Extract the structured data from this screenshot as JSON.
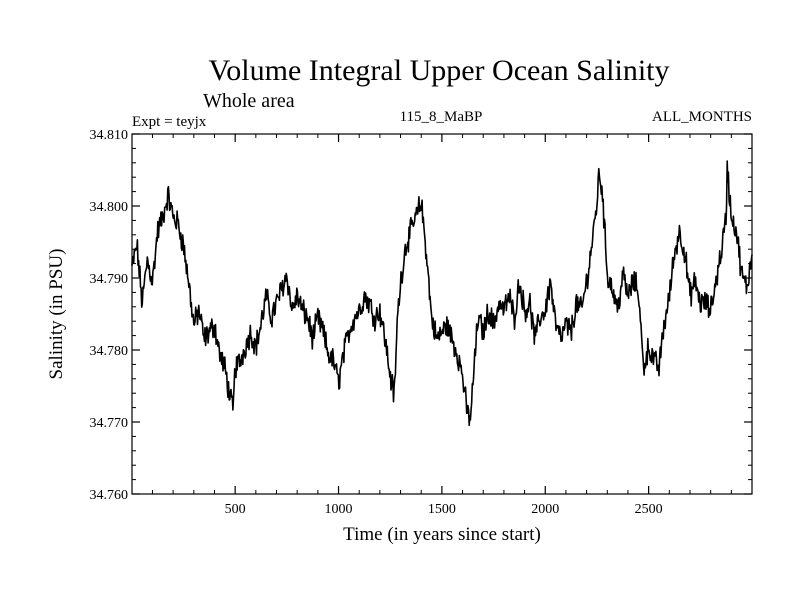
{
  "chart_data": {
    "type": "line",
    "title": "Volume Integral Upper Ocean Salinity",
    "subtitle": "Whole area",
    "expt_label": "Expt = teyjx",
    "experiment_name": "115_8_MaBP",
    "months_label": "ALL_MONTHS",
    "xlabel": "Time (in years since start)",
    "ylabel": "Salinity (in PSU)",
    "xlim": [
      1,
      3000
    ],
    "ylim": [
      34.76,
      34.81
    ],
    "xticks": [
      500,
      1000,
      1500,
      2000,
      2500
    ],
    "xtick_labels": [
      "500",
      "1000",
      "1500",
      "2000",
      "2500"
    ],
    "yticks": [
      34.76,
      34.77,
      34.78,
      34.79,
      34.8,
      34.81
    ],
    "ytick_labels": [
      "34.760",
      "34.770",
      "34.780",
      "34.790",
      "34.800",
      "34.810"
    ],
    "grid": false,
    "series": [
      {
        "name": "Salinity",
        "color": "#000000",
        "x": [
          0,
          25,
          50,
          75,
          100,
          125,
          150,
          175,
          200,
          225,
          250,
          275,
          300,
          325,
          350,
          375,
          400,
          425,
          450,
          475,
          490,
          500,
          525,
          550,
          575,
          600,
          625,
          650,
          675,
          700,
          725,
          750,
          775,
          800,
          825,
          850,
          875,
          900,
          925,
          950,
          975,
          1000,
          1025,
          1050,
          1075,
          1100,
          1125,
          1150,
          1175,
          1200,
          1225,
          1250,
          1270,
          1285,
          1300,
          1325,
          1350,
          1375,
          1400,
          1425,
          1450,
          1475,
          1500,
          1525,
          1550,
          1575,
          1600,
          1620,
          1640,
          1650,
          1675,
          1700,
          1725,
          1750,
          1775,
          1800,
          1825,
          1850,
          1875,
          1900,
          1925,
          1950,
          1975,
          2000,
          2025,
          2050,
          2075,
          2100,
          2125,
          2150,
          2175,
          2200,
          2225,
          2250,
          2260,
          2275,
          2300,
          2325,
          2350,
          2375,
          2400,
          2425,
          2450,
          2475,
          2500,
          2525,
          2550,
          2575,
          2600,
          2625,
          2650,
          2675,
          2700,
          2725,
          2750,
          2775,
          2800,
          2825,
          2850,
          2875,
          2880,
          2900,
          2925,
          2950,
          2975,
          3000
        ],
        "values": [
          34.7915,
          34.7945,
          34.7865,
          34.7925,
          34.7895,
          34.7965,
          34.7985,
          34.8015,
          34.7985,
          34.7975,
          34.7945,
          34.7895,
          34.7835,
          34.7855,
          34.7815,
          34.7825,
          34.7835,
          34.7795,
          34.7775,
          34.7735,
          34.7715,
          34.7775,
          34.7785,
          34.7805,
          34.7825,
          34.7805,
          34.7835,
          34.7875,
          34.7845,
          34.7865,
          34.7885,
          34.7905,
          34.7855,
          34.7875,
          34.7855,
          34.7845,
          34.7815,
          34.7845,
          34.7825,
          34.7795,
          34.7785,
          34.7755,
          34.7795,
          34.7825,
          34.7845,
          34.7855,
          34.7875,
          34.7865,
          34.7845,
          34.7855,
          34.7815,
          34.7765,
          34.7735,
          34.7845,
          34.7895,
          34.7945,
          34.7965,
          34.7985,
          34.8005,
          34.7935,
          34.7845,
          34.7815,
          34.7825,
          34.7835,
          34.7815,
          34.7795,
          34.7765,
          34.7715,
          34.7705,
          34.7755,
          34.7845,
          34.7825,
          34.7855,
          34.7835,
          34.7865,
          34.7855,
          34.7875,
          34.7845,
          34.7895,
          34.7855,
          34.7865,
          34.7815,
          34.7845,
          34.7855,
          34.7895,
          34.7835,
          34.7815,
          34.7835,
          34.7825,
          34.7865,
          34.7855,
          34.7895,
          34.7945,
          34.8005,
          34.8045,
          34.8025,
          34.7905,
          34.7885,
          34.7855,
          34.7905,
          34.7875,
          34.7895,
          34.7885,
          34.7775,
          34.7805,
          34.7785,
          34.7775,
          34.7835,
          34.7875,
          34.7935,
          34.7965,
          34.7935,
          34.7875,
          34.7895,
          34.7865,
          34.7865,
          34.7855,
          34.7895,
          34.7935,
          34.7985,
          34.8055,
          34.7985,
          34.7965,
          34.7905,
          34.7885,
          34.7935
        ]
      }
    ]
  }
}
